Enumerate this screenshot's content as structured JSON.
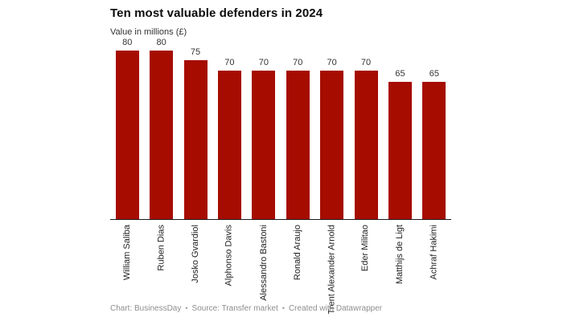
{
  "header": {
    "title": "Ten most valuable defenders in 2024",
    "subtitle": "Value in millions (£)"
  },
  "chart_data": {
    "type": "bar",
    "title": "Ten most valuable defenders in 2024",
    "subtitle": "Value in millions (£)",
    "categories": [
      "William Saliba",
      "Ruben Dias",
      "Josko Gvardiol",
      "Alphonso Davis",
      "Alessandro Bastoni",
      "Ronald Araujo",
      "Trent Alexander Arnold",
      "Eder Militao",
      "Matthijs de Ligt",
      "Achraf Hakimi"
    ],
    "values": [
      80,
      80,
      75,
      70,
      70,
      70,
      70,
      70,
      65,
      65
    ],
    "xlabel": "",
    "ylabel": "Value in millions (£)",
    "ylim": [
      0,
      80
    ],
    "bar_color": "#a60c00",
    "value_label_color": "#333333",
    "axis_line_color": "#1a1a1a",
    "grid": false,
    "legend": false,
    "value_labels_shown": true,
    "x_tick_rotation": -90
  },
  "footer": {
    "chart_credit": "Chart: BusinessDay",
    "source": "Source: Transfer market",
    "created": "Created with Datawrapper",
    "separator": "•"
  }
}
